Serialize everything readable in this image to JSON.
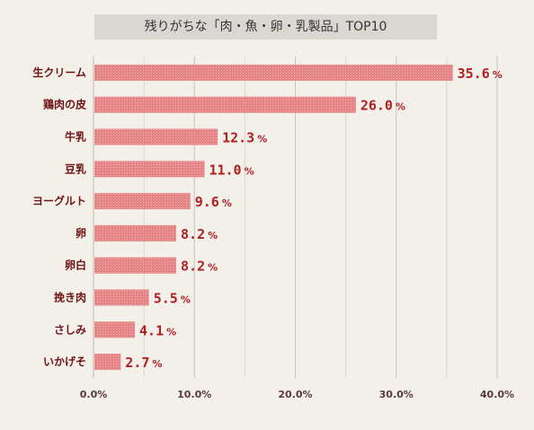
{
  "chart_data": {
    "type": "bar",
    "orientation": "horizontal",
    "title": "残りがちな「肉・魚・卵・乳製品」TOP10",
    "categories": [
      "生クリーム",
      "鶏肉の皮",
      "牛乳",
      "豆乳",
      "ヨーグルト",
      "卵",
      "卵白",
      "挽き肉",
      "さしみ",
      "いかげそ"
    ],
    "values": [
      35.6,
      26.0,
      12.3,
      11.0,
      9.6,
      8.2,
      8.2,
      5.5,
      4.1,
      2.7
    ],
    "value_labels": [
      "35.6",
      "26.0",
      "12.3",
      "11.0",
      "9.6",
      "8.2",
      "8.2",
      "5.5",
      "4.1",
      "2.7"
    ],
    "value_unit": "%",
    "xlim": [
      0,
      40
    ],
    "xticks": [
      "0.0%",
      "10.0%",
      "20.0%",
      "30.0%",
      "40.0%"
    ],
    "grid": true,
    "bar_color": "#e58487",
    "label_color": "#b11f22"
  }
}
